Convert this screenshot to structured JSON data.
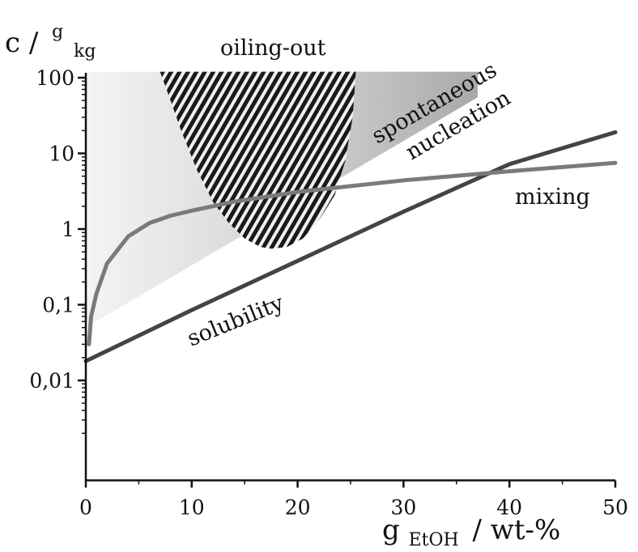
{
  "chart_data": {
    "type": "line",
    "title": "",
    "y_axis": {
      "label_prefix": "c /",
      "label_sup": "g",
      "label_sub": "kg",
      "scale": "log",
      "ylim": [
        0.001,
        100
      ],
      "ticks": [
        {
          "value": 100,
          "label": "100"
        },
        {
          "value": 10,
          "label": "10"
        },
        {
          "value": 1,
          "label": "1"
        },
        {
          "value": 0.1,
          "label": "0,1"
        },
        {
          "value": 0.01,
          "label": "0,01"
        }
      ]
    },
    "x_axis": {
      "label_main": "g",
      "label_sub": "EtOH",
      "label_suffix": "/ wt-%",
      "scale": "linear",
      "xlim": [
        0,
        50
      ],
      "ticks": [
        0,
        10,
        20,
        30,
        40,
        50
      ],
      "tick_labels": [
        "0",
        "10",
        "20",
        "30",
        "40",
        "50"
      ]
    },
    "grid": false,
    "series": [
      {
        "name": "solubility",
        "color": "#444444",
        "points": [
          [
            0,
            0.018
          ],
          [
            10,
            0.085
          ],
          [
            20,
            0.38
          ],
          [
            30,
            1.7
          ],
          [
            40,
            7.2
          ],
          [
            50,
            19
          ]
        ]
      },
      {
        "name": "mixing",
        "color": "#7a7a7a",
        "points": [
          [
            0.3,
            0.03
          ],
          [
            0.5,
            0.07
          ],
          [
            1,
            0.14
          ],
          [
            2,
            0.35
          ],
          [
            4,
            0.8
          ],
          [
            6,
            1.2
          ],
          [
            8,
            1.5
          ],
          [
            10,
            1.75
          ],
          [
            14,
            2.3
          ],
          [
            20,
            3.1
          ],
          [
            30,
            4.4
          ],
          [
            40,
            5.8
          ],
          [
            50,
            7.5
          ]
        ]
      }
    ],
    "regions": [
      {
        "name": "spontaneous nucleation",
        "fill": "gradient-gray",
        "polygon": [
          [
            0,
            0.05
          ],
          [
            0,
            120
          ],
          [
            37,
            120
          ],
          [
            37,
            55
          ]
        ]
      },
      {
        "name": "oiling-out",
        "fill": "hatched",
        "points": [
          [
            7,
            120
          ],
          [
            7.8,
            60
          ],
          [
            9,
            20
          ],
          [
            10.5,
            6
          ],
          [
            12,
            2.3
          ],
          [
            13.5,
            1.2
          ],
          [
            15,
            0.75
          ],
          [
            16.5,
            0.58
          ],
          [
            17.5,
            0.55
          ],
          [
            19,
            0.58
          ],
          [
            20.5,
            0.75
          ],
          [
            22,
            1.3
          ],
          [
            23.5,
            2.8
          ],
          [
            24.5,
            8
          ],
          [
            25.2,
            30
          ],
          [
            25.5,
            120
          ]
        ]
      }
    ],
    "annotations": [
      {
        "text": "oiling-out"
      },
      {
        "text": "spontaneous"
      },
      {
        "text": "nucleation"
      },
      {
        "text": "mixing"
      },
      {
        "text": "solubility"
      }
    ]
  }
}
